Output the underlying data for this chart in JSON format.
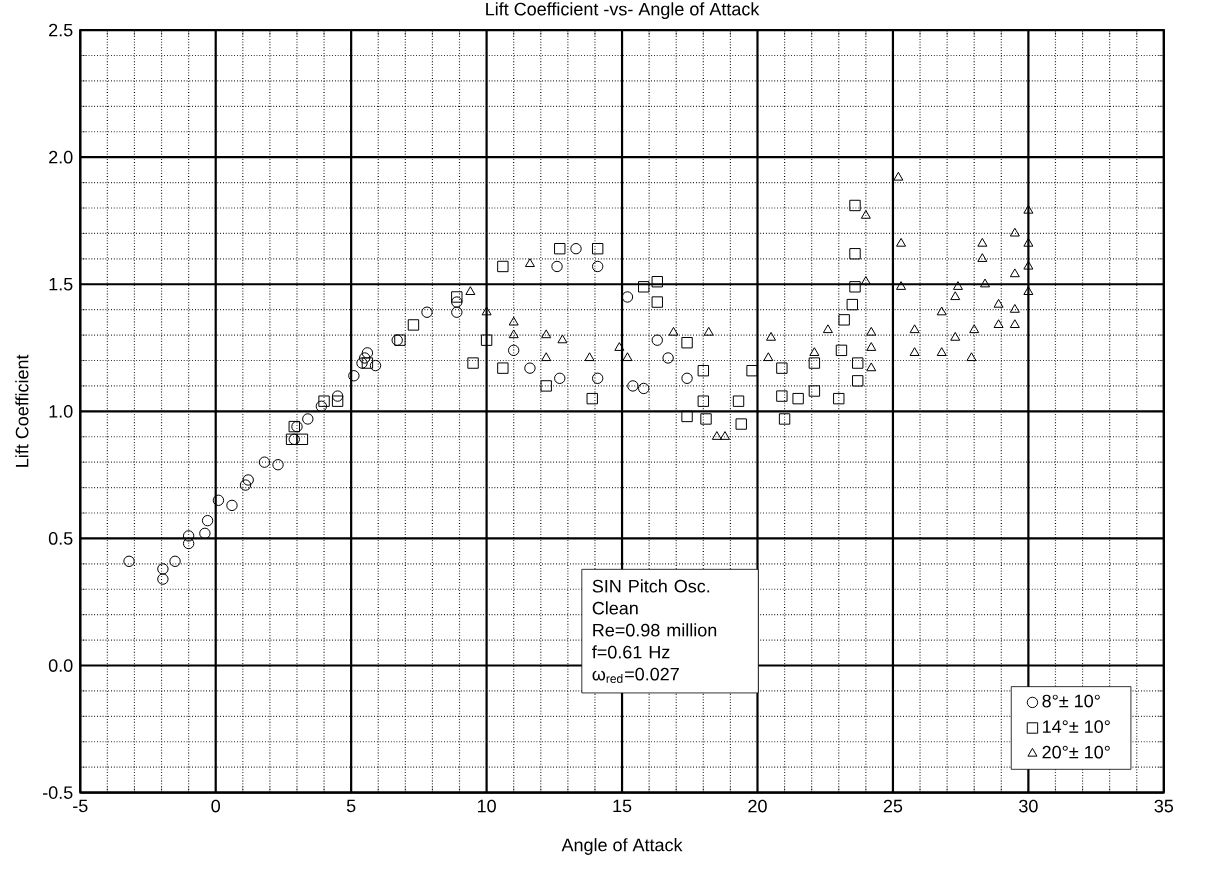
{
  "chart_data": {
    "type": "scatter",
    "title": "Lift Coefficient -vs- Angle of Attack",
    "xlabel": "Angle of Attack",
    "ylabel": "Lift Coefficient",
    "xlim": [
      -5,
      35
    ],
    "xticks": [
      -5,
      0,
      5,
      10,
      15,
      20,
      25,
      30,
      35
    ],
    "ylim": [
      -0.5,
      2.5
    ],
    "yticks": [
      -0.5,
      {
        "value": 0,
        "label": "0.0"
      },
      0.5,
      {
        "value": 1,
        "label": "1.0"
      },
      1.5,
      {
        "value": 2,
        "label": "2.0"
      },
      2.5
    ],
    "grid": true,
    "legend": "bottom right",
    "annotations": [
      "SIN Pitch Osc.",
      "Clean",
      "Re=0.98 million",
      "f=0.61 Hz",
      "ω$_{red}$=0.027"
    ],
    "series": [
      {
        "name": "8°± 10°",
        "color": "#000000",
        "marker": "circle",
        "x": [
          -3.2,
          -1.95,
          -1.95,
          -1.5,
          -1.0,
          -1.0,
          -0.4,
          -0.3,
          0.1,
          0.6,
          1.1,
          1.2,
          1.8,
          2.3,
          2.9,
          3.0,
          3.4,
          3.9,
          4.5,
          5.1,
          5.5,
          5.9,
          5.4,
          5.6,
          6.7,
          7.8,
          8.9,
          8.9,
          12.6,
          13.3,
          14.1,
          15.2,
          11.0,
          11.6,
          12.7,
          14.1,
          15.4,
          15.8,
          16.3,
          16.7,
          17.4
        ],
        "values": [
          0.41,
          0.34,
          0.38,
          0.41,
          0.48,
          0.51,
          0.52,
          0.57,
          0.65,
          0.63,
          0.71,
          0.73,
          0.8,
          0.79,
          0.89,
          0.94,
          0.97,
          1.02,
          1.06,
          1.14,
          1.21,
          1.18,
          1.19,
          1.23,
          1.28,
          1.39,
          1.43,
          1.39,
          1.57,
          1.64,
          1.57,
          1.45,
          1.24,
          1.17,
          1.13,
          1.13,
          1.1,
          1.09,
          1.28,
          1.21,
          1.13
        ]
      },
      {
        "name": "14°± 10°",
        "color": "#000000",
        "marker": "square",
        "x": [
          2.8,
          3.2,
          2.9,
          4.0,
          4.5,
          5.6,
          6.8,
          7.3,
          8.9,
          10.0,
          9.5,
          10.6,
          10.6,
          12.7,
          14.1,
          12.2,
          13.9,
          15.8,
          16.3,
          16.3,
          17.4,
          18.0,
          18.0,
          17.4,
          18.1,
          23.6,
          23.6,
          23.6,
          23.5,
          23.2,
          19.4,
          19.3,
          19.8,
          20.9,
          21.5,
          21.0,
          22.1,
          22.1,
          23.1,
          23.7,
          23.7,
          23.0,
          20.9
        ],
        "values": [
          0.89,
          0.89,
          0.94,
          1.04,
          1.04,
          1.19,
          1.28,
          1.34,
          1.45,
          1.28,
          1.19,
          1.17,
          1.57,
          1.64,
          1.64,
          1.1,
          1.05,
          1.49,
          1.51,
          1.43,
          1.27,
          1.16,
          1.04,
          0.98,
          0.97,
          1.81,
          1.62,
          1.49,
          1.42,
          1.36,
          0.95,
          1.04,
          1.16,
          1.06,
          1.05,
          0.97,
          1.19,
          1.08,
          1.24,
          1.19,
          1.12,
          1.05,
          1.17
        ]
      },
      {
        "name": "20°± 10°",
        "color": "#000000",
        "marker": "triangle",
        "x": [
          10.0,
          11.6,
          11.0,
          12.2,
          12.8,
          11.0,
          12.2,
          13.8,
          14.9,
          15.2,
          16.9,
          18.5,
          18.2,
          9.4,
          25.2,
          24.0,
          25.3,
          24.0,
          25.3,
          20.5,
          20.4,
          22.6,
          22.1,
          24.2,
          24.2,
          24.2,
          25.8,
          25.8,
          26.8,
          26.8,
          27.3,
          27.4,
          27.3,
          27.9,
          28.0,
          28.3,
          28.3,
          28.4,
          28.9,
          28.9,
          29.5,
          29.5,
          29.5,
          29.5,
          30.0,
          30.0,
          30.0,
          30.0,
          18.8
        ],
        "values": [
          1.39,
          1.58,
          1.35,
          1.3,
          1.28,
          1.3,
          1.21,
          1.21,
          1.25,
          1.21,
          1.31,
          0.9,
          1.31,
          1.47,
          1.92,
          1.77,
          1.66,
          1.51,
          1.49,
          1.29,
          1.21,
          1.32,
          1.23,
          1.31,
          1.25,
          1.17,
          1.32,
          1.23,
          1.39,
          1.23,
          1.45,
          1.49,
          1.29,
          1.21,
          1.32,
          1.66,
          1.6,
          1.5,
          1.42,
          1.34,
          1.7,
          1.54,
          1.34,
          1.4,
          1.79,
          1.66,
          1.57,
          1.47,
          0.9
        ]
      }
    ]
  }
}
